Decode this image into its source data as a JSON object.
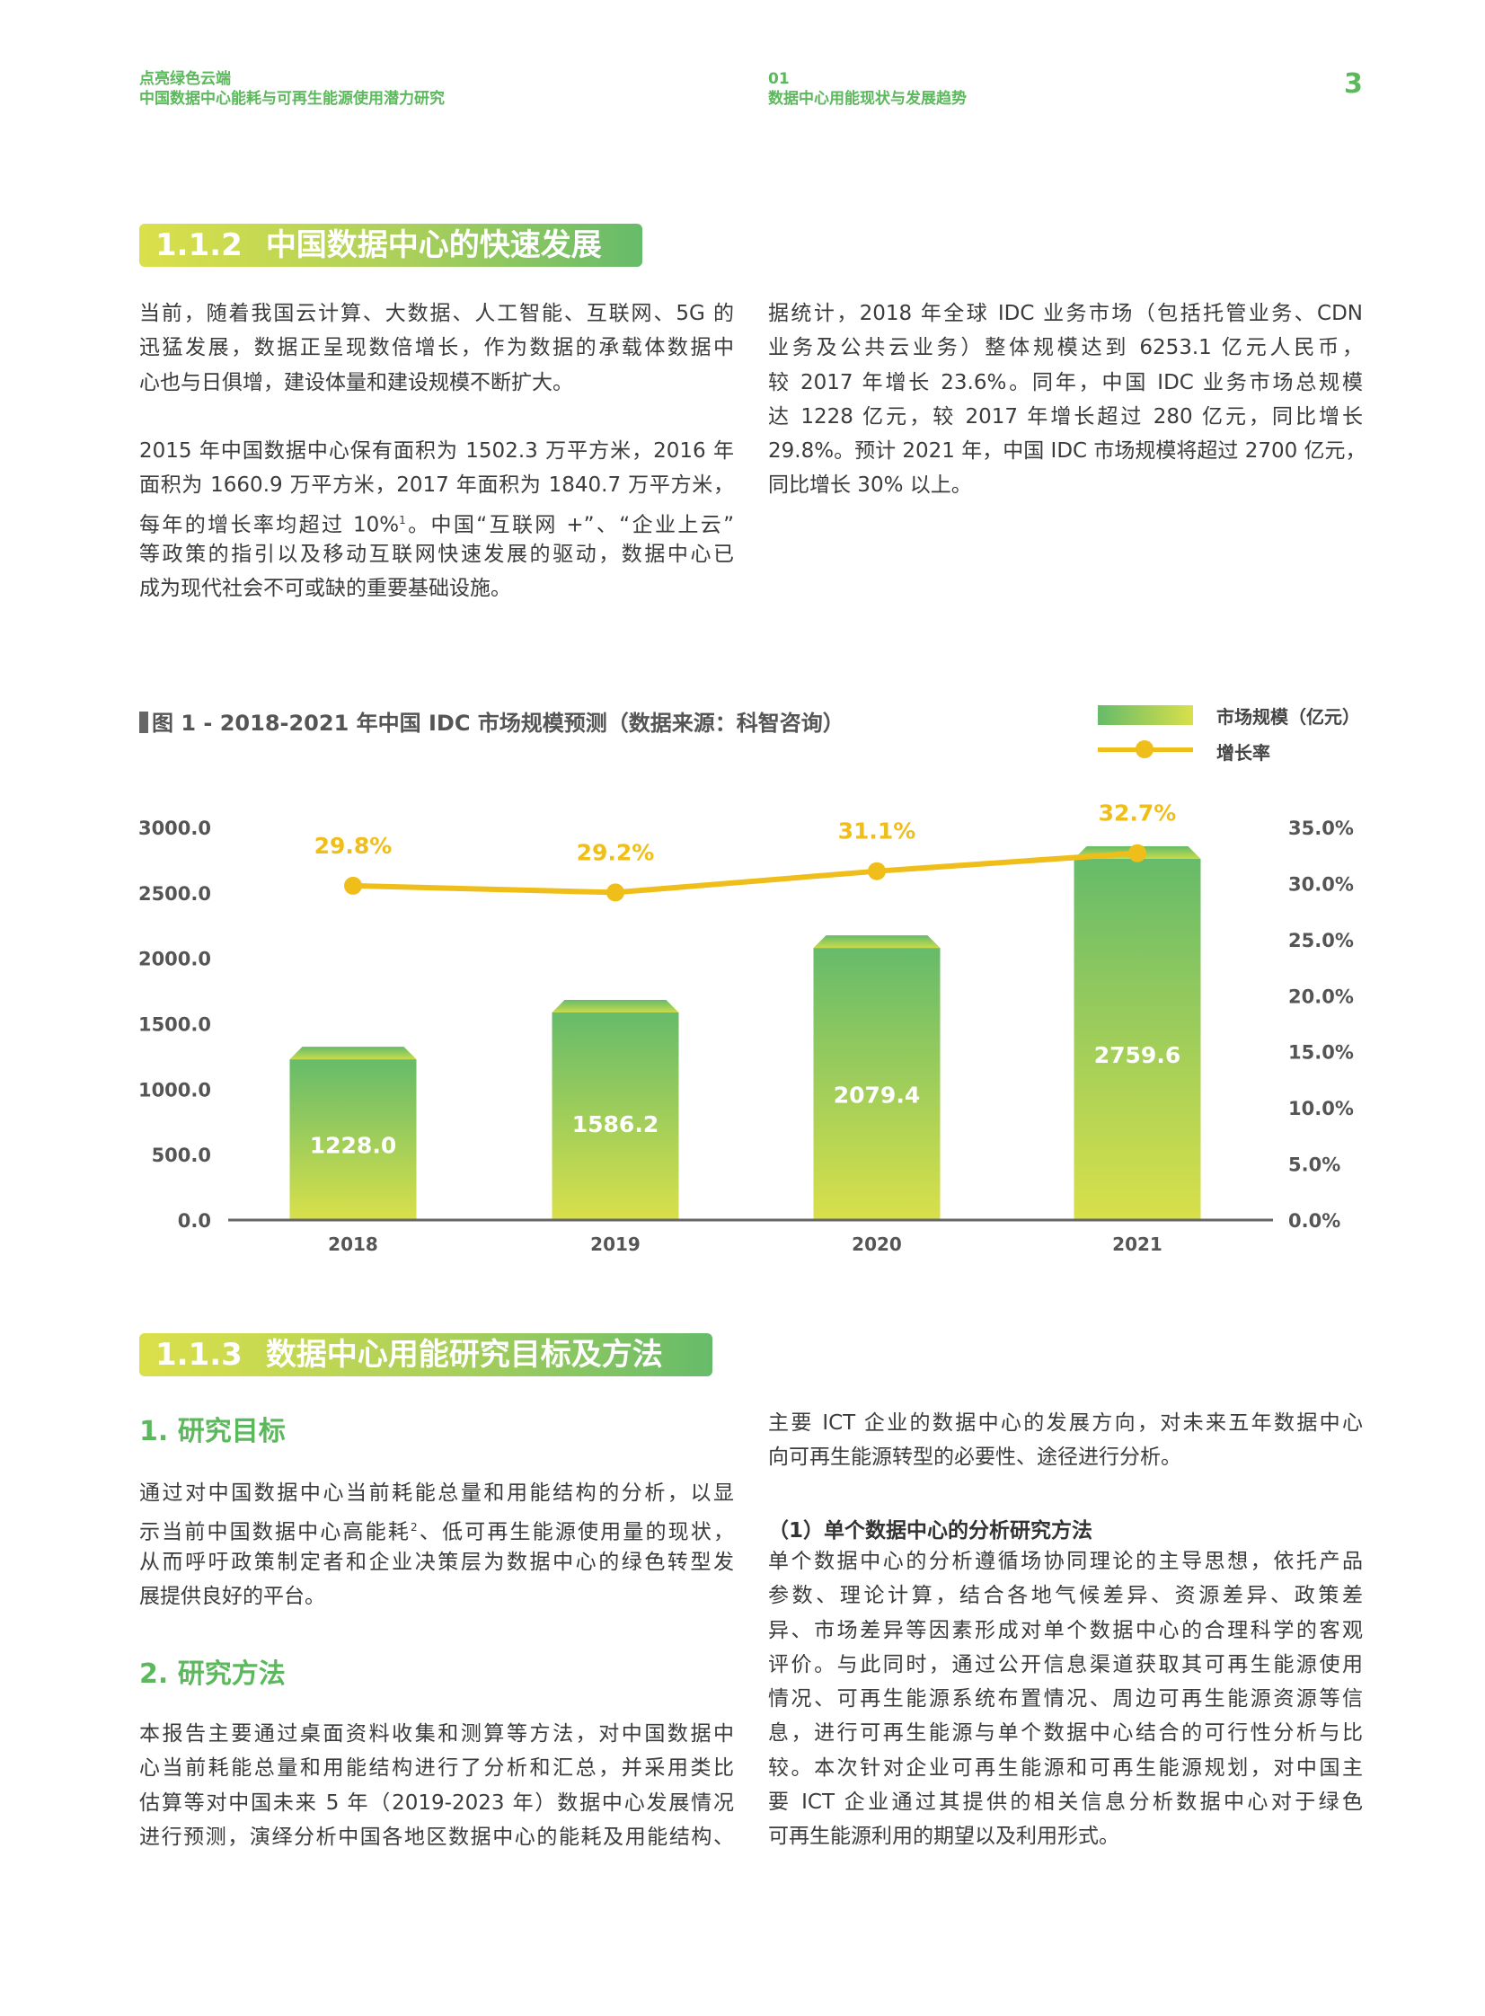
{
  "header": {
    "left_line1": "点亮绿色云端",
    "left_line2": "中国数据中心能耗与可再生能源使用潜力研究",
    "mid_line1": "01",
    "mid_line2": "数据中心用能现状与发展趋势",
    "page_number": "3"
  },
  "section_112": {
    "number": "1.1.2",
    "title": "中国数据中心的快速发展",
    "left_para1": [
      "当前，随着我国云计算、大数据、人工智能、互联网、5G 的",
      "迅猛发展，数据正呈现数倍增长，作为数据的承载体数据中",
      "心也与日俱增，建设体量和建设规模不断扩大。"
    ],
    "left_para2": [
      "2015 年中国数据中心保有面积为 1502.3 万平方米，2016 年",
      "面积为 1660.9 万平方米，2017 年面积为 1840.7 万平方米，",
      "每年的增长率均超过 10%",
      "等政策的指引以及移动互联网快速发展的驱动，数据中心已",
      "成为现代社会不可或缺的重要基础设施。"
    ],
    "footnote1": "1",
    "left_para2_line3_tail": "。中国“互联网 +”、“企业上云”",
    "right_para": [
      "据统计，2018 年全球 IDC 业务市场（包括托管业务、CDN",
      "业务及公共云业务）整体规模达到 6253.1 亿元人民币，",
      "较 2017 年增长 23.6%。同年，中国 IDC 业务市场总规模",
      "达 1228 亿元，较 2017 年增长超过 280 亿元，同比增长",
      "29.8%。预计 2021 年，中国 IDC 市场规模将超过 2700 亿元，",
      "同比增长 30% 以上。"
    ]
  },
  "chart_data": {
    "type": "bar",
    "title": "图 1 - 2018-2021 年中国 IDC 市场规模预测（数据来源：科智咨询）",
    "categories": [
      "2018",
      "2019",
      "2020",
      "2021"
    ],
    "series": [
      {
        "name": "市场规模（亿元）",
        "type": "bar",
        "axis": "left",
        "values": [
          1228.0,
          1586.2,
          2079.4,
          2759.6
        ],
        "labels": [
          "1228.0",
          "1586.2",
          "2079.4",
          "2759.6"
        ]
      },
      {
        "name": "增长率",
        "type": "line",
        "axis": "right",
        "values": [
          29.8,
          29.2,
          31.1,
          32.7
        ],
        "labels": [
          "29.8%",
          "29.2%",
          "31.1%",
          "32.7%"
        ]
      }
    ],
    "y_left": {
      "range": [
        0,
        3000
      ],
      "ticks": [
        "0.0",
        "500.0",
        "1000.0",
        "1500.0",
        "2000.0",
        "2500.0",
        "3000.0"
      ]
    },
    "y_right": {
      "range": [
        0,
        35
      ],
      "ticks": [
        "0.0%",
        "5.0%",
        "10.0%",
        "15.0%",
        "20.0%",
        "25.0%",
        "30.0%",
        "35.0%"
      ]
    },
    "legend_placement": "top-right",
    "grid": false,
    "colors": {
      "bar_top": "#66bb6a",
      "bar_bottom": "#d9e04a",
      "line": "#f0be1a",
      "label": "#f0be1a",
      "axis": "#666666"
    }
  },
  "section_113": {
    "number": "1.1.3",
    "title": "数据中心用能研究目标及方法",
    "sub1": "1. 研究目标",
    "sub1_para": [
      "通过对中国数据中心当前耗能总量和用能结构的分析，以显",
      "示当前中国数据中心高能耗",
      "从而呼吁政策制定者和企业决策层为数据中心的绿色转型发",
      "展提供良好的平台。"
    ],
    "footnote2": "2",
    "sub1_line2_tail": "、低可再生能源使用量的现状，",
    "sub2": "2. 研究方法",
    "sub2_para": [
      "本报告主要通过桌面资料收集和测算等方法，对中国数据中",
      "心当前耗能总量和用能结构进行了分析和汇总，并采用类比",
      "估算等对中国未来 5 年（2019-2023 年）数据中心发展情况",
      "进行预测，演绎分析中国各地区数据中心的能耗及用能结构、"
    ],
    "right_para1": [
      "主要 ICT 企业的数据中心的发展方向，对未来五年数据中心",
      "向可再生能源转型的必要性、途径进行分析。"
    ],
    "right_sub": "（1）单个数据中心的分析研究方法",
    "right_para2": [
      "单个数据中心的分析遵循场协同理论的主导思想，依托产品",
      "参数、理论计算，结合各地气候差异、资源差异、政策差",
      "异、市场差异等因素形成对单个数据中心的合理科学的客观",
      "评价。与此同时，通过公开信息渠道获取其可再生能源使用",
      "情况、可再生能源系统布置情况、周边可再生能源资源等信",
      "息，进行可再生能源与单个数据中心结合的可行性分析与比",
      "较。本次针对企业可再生能源和可再生能源规划，对中国主",
      "要 ICT 企业通过其提供的相关信息分析数据中心对于绿色",
      "可再生能源利用的期望以及利用形式。"
    ]
  }
}
